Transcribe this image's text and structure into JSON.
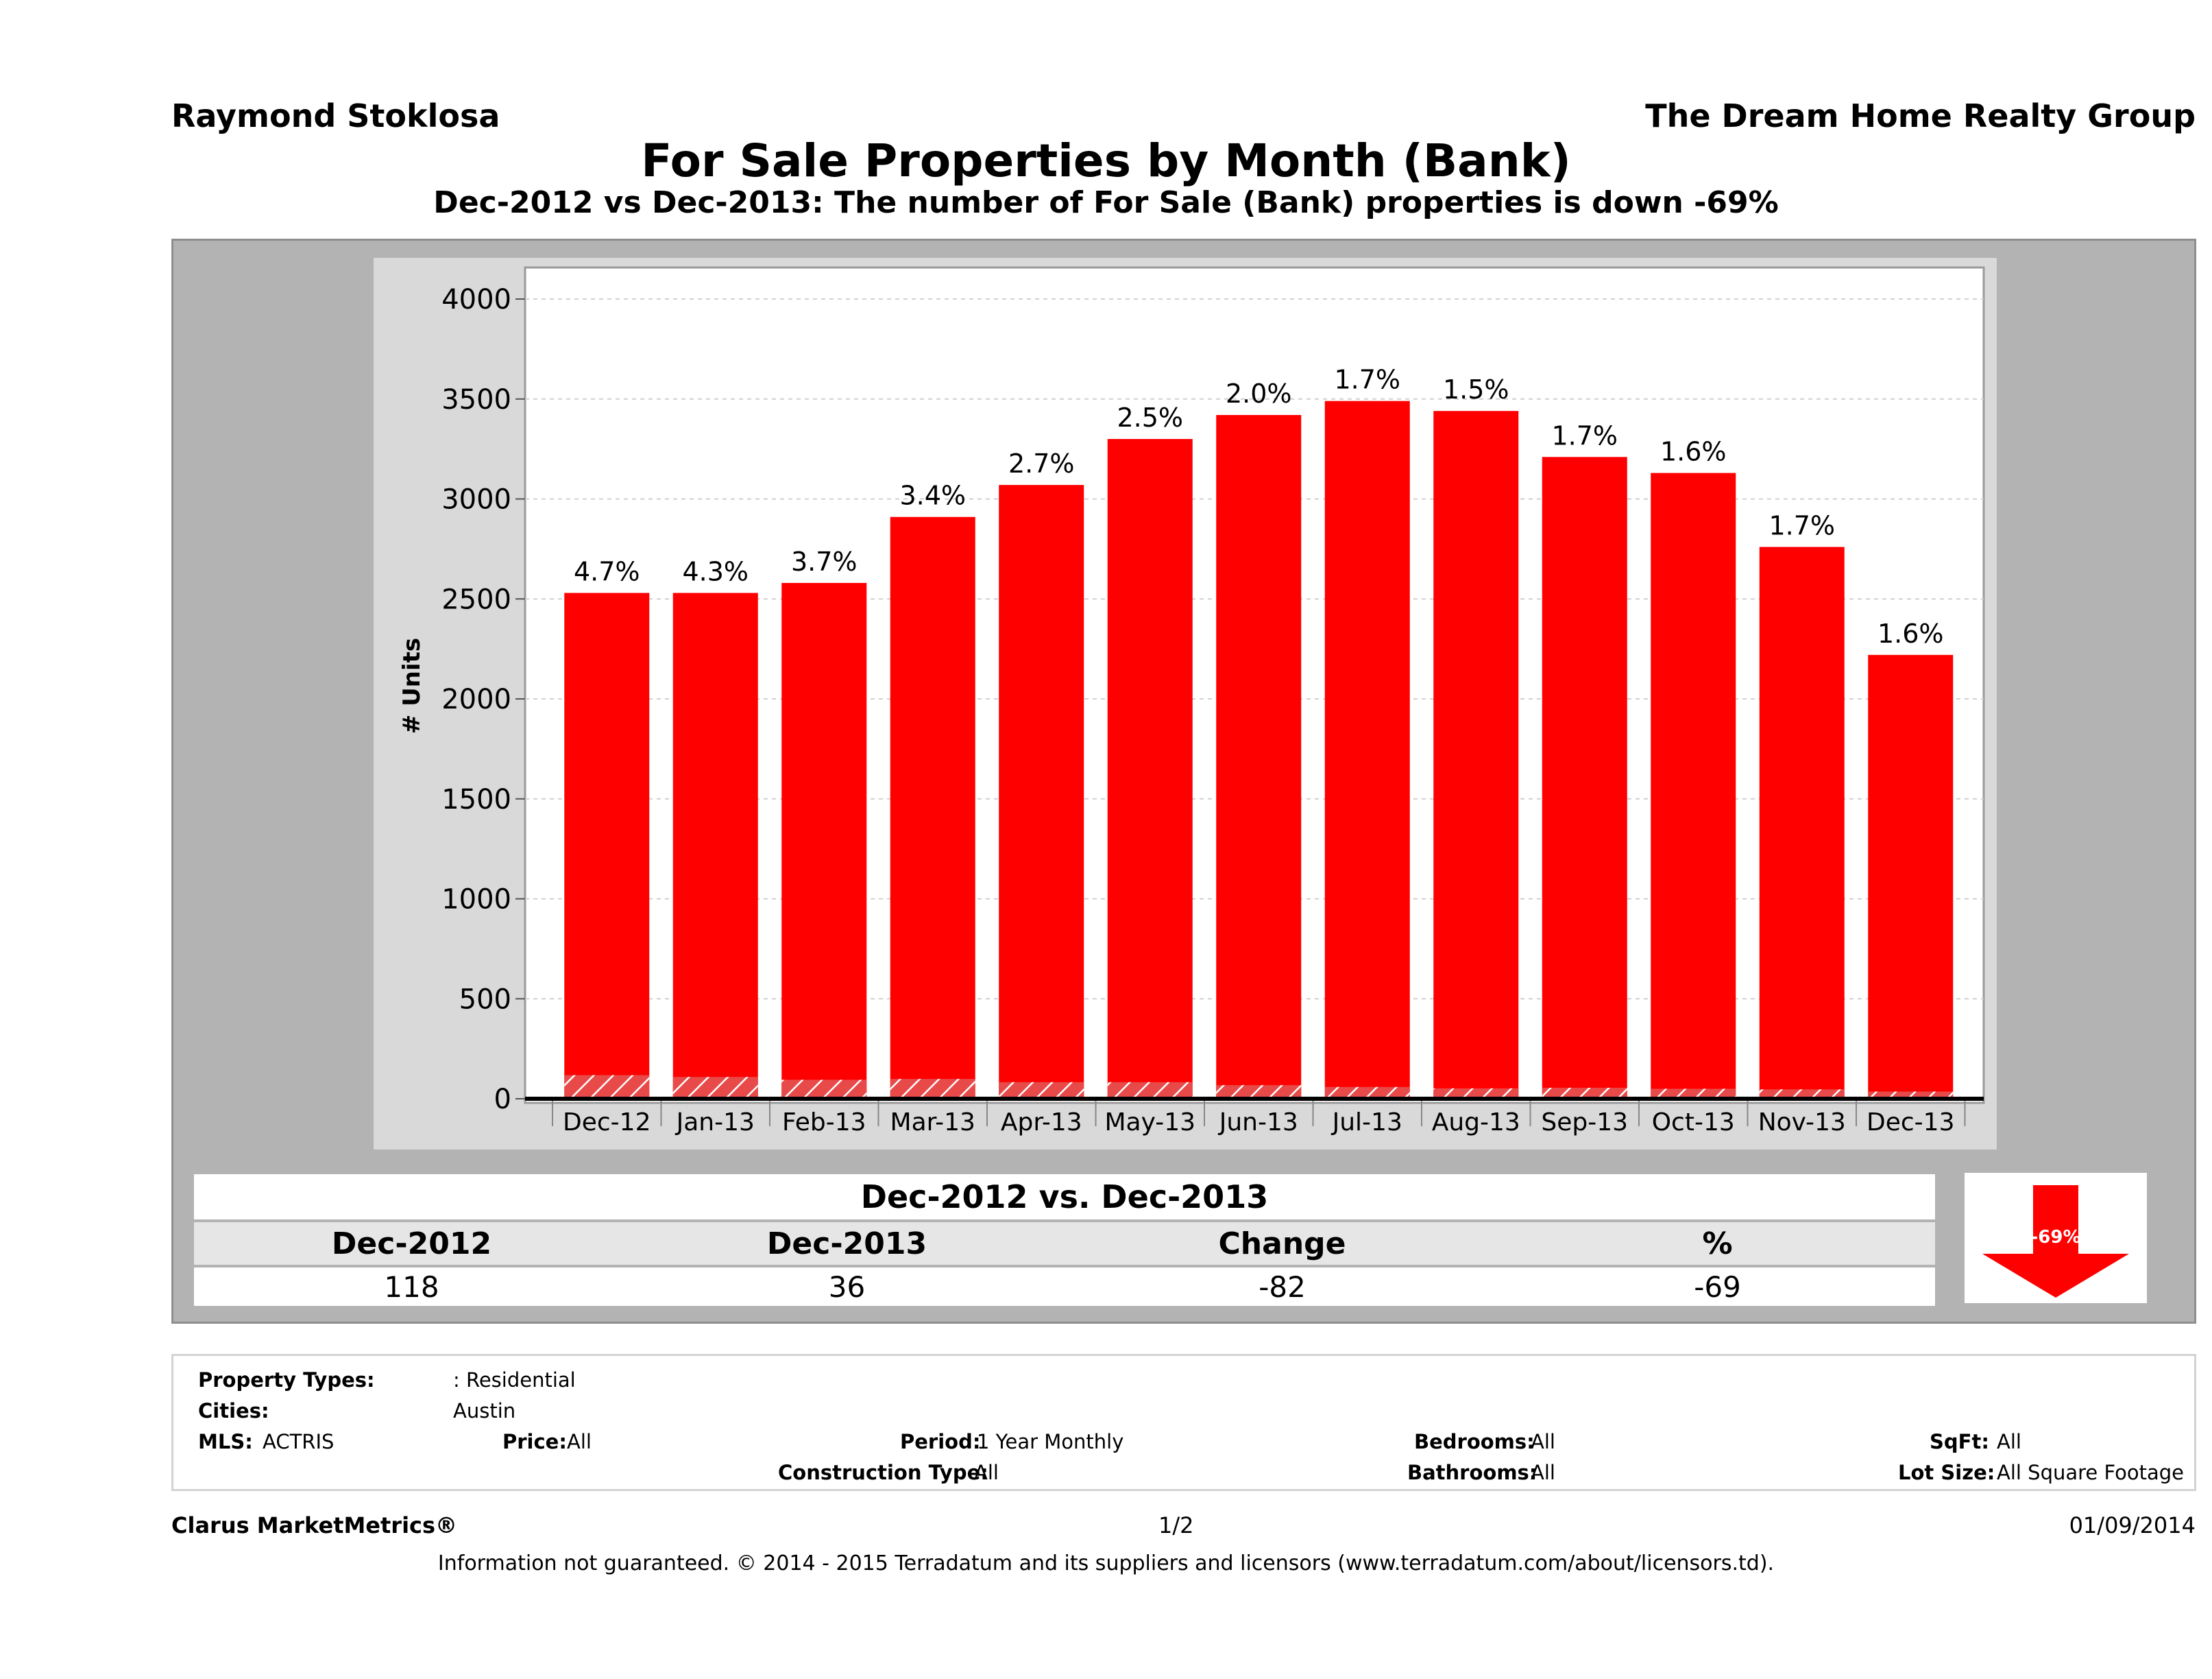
{
  "header": {
    "agent": "Raymond Stoklosa",
    "company": "The Dream Home Realty Group",
    "title": "For Sale Properties by Month (Bank)",
    "subtitle": "Dec-2012 vs Dec-2013: The number of For Sale (Bank)  properties is down -69%"
  },
  "chart_data": {
    "type": "bar",
    "categories": [
      "Dec-12",
      "Jan-13",
      "Feb-13",
      "Mar-13",
      "Apr-13",
      "May-13",
      "Jun-13",
      "Jul-13",
      "Aug-13",
      "Sep-13",
      "Oct-13",
      "Nov-13",
      "Dec-13"
    ],
    "series": [
      {
        "values": [
          2530,
          2530,
          2580,
          2910,
          3070,
          3300,
          3420,
          3490,
          3440,
          3210,
          3130,
          2760,
          2220
        ],
        "color": "#ff0000"
      },
      {
        "values": [
          118,
          109,
          95,
          99,
          83,
          83,
          68,
          59,
          52,
          55,
          50,
          47,
          36
        ],
        "color": "#e03030",
        "pattern": "hatched"
      }
    ],
    "data_labels": [
      "4.7%",
      "4.3%",
      "3.7%",
      "3.4%",
      "2.7%",
      "2.5%",
      "2.0%",
      "1.7%",
      "1.5%",
      "1.7%",
      "1.6%",
      "1.7%",
      "1.6%"
    ],
    "ylabel": "# Units",
    "yticks": [
      "0",
      "500",
      "1000",
      "1500",
      "2000",
      "2500",
      "3000",
      "3500",
      "4000"
    ],
    "ylim": [
      0,
      4100
    ],
    "grid": true
  },
  "comparison": {
    "title": "Dec-2012 vs. Dec-2013",
    "headers": [
      "Dec-2012",
      "Dec-2013",
      "Change",
      "%"
    ],
    "values": [
      "118",
      "36",
      "-82",
      "-69"
    ],
    "badge_text": "-69%",
    "badge_color": "#ff0000"
  },
  "filters": {
    "property_types_label": "Property Types:",
    "property_types_value": ": Residential",
    "cities_label": "Cities:",
    "cities_value": "Austin",
    "mls_label": "MLS:",
    "mls_value": "ACTRIS",
    "price_label": "Price:",
    "price_value": "All",
    "period_label": "Period:",
    "period_value": "1 Year Monthly",
    "construction_label": "Construction Type:",
    "construction_value": "All",
    "bedrooms_label": "Bedrooms:",
    "bedrooms_value": "All",
    "bathrooms_label": "Bathrooms:",
    "bathrooms_value": "All",
    "sqft_label": "SqFt:",
    "sqft_value": "All",
    "lot_label": "Lot Size:",
    "lot_value": "All Square Footage"
  },
  "footer": {
    "brand": "Clarus MarketMetrics®",
    "page": "1/2",
    "date": "01/09/2014",
    "disclaimer": "Information not guaranteed. © 2014 - 2015 Terradatum and its suppliers and licensors (www.terradatum.com/about/licensors.td)."
  }
}
